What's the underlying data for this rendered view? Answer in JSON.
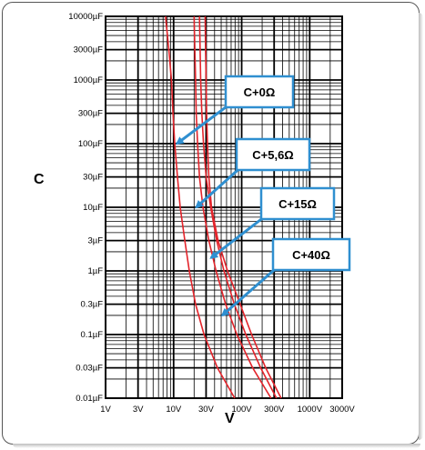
{
  "chart_data": {
    "type": "line",
    "xlabel": "V",
    "ylabel": "C",
    "x_scale": "log",
    "y_scale": "log",
    "xlim": [
      1,
      3000
    ],
    "ylim": [
      0.01,
      10000
    ],
    "grid": true,
    "x_ticks": [
      {
        "value": 1,
        "label": "1V"
      },
      {
        "value": 3,
        "label": "3V"
      },
      {
        "value": 10,
        "label": "10V"
      },
      {
        "value": 30,
        "label": "30V"
      },
      {
        "value": 100,
        "label": "100V"
      },
      {
        "value": 300,
        "label": "300V"
      },
      {
        "value": 1000,
        "label": "1000V"
      },
      {
        "value": 3000,
        "label": "3000V"
      }
    ],
    "y_ticks": [
      {
        "value": 10000,
        "label": "10000µF"
      },
      {
        "value": 3000,
        "label": "3000µF"
      },
      {
        "value": 1000,
        "label": "1000µF"
      },
      {
        "value": 300,
        "label": "300µF"
      },
      {
        "value": 100,
        "label": "100µF"
      },
      {
        "value": 30,
        "label": "30µF"
      },
      {
        "value": 10,
        "label": "10µF"
      },
      {
        "value": 3,
        "label": "3µF"
      },
      {
        "value": 1,
        "label": "1µF"
      },
      {
        "value": 0.3,
        "label": "0.3µF"
      },
      {
        "value": 0.1,
        "label": "0.1µF"
      },
      {
        "value": 0.03,
        "label": "0.03µF"
      },
      {
        "value": 0.01,
        "label": "0.01µF"
      }
    ],
    "series": [
      {
        "name": "C+0Ω",
        "points": [
          [
            7.6,
            10000
          ],
          [
            8.5,
            3000
          ],
          [
            9.3,
            1000
          ],
          [
            9.8,
            300
          ],
          [
            10.4,
            100
          ],
          [
            11.4,
            30
          ],
          [
            12.5,
            10
          ],
          [
            14.6,
            3
          ],
          [
            17,
            1
          ],
          [
            21,
            0.3
          ],
          [
            28,
            0.1
          ],
          [
            44,
            0.03
          ],
          [
            79,
            0.01
          ]
        ]
      },
      {
        "name": "C+5,6Ω",
        "points": [
          [
            20,
            10000
          ],
          [
            20.5,
            3000
          ],
          [
            21,
            1000
          ],
          [
            21.5,
            300
          ],
          [
            22.5,
            100
          ],
          [
            24,
            30
          ],
          [
            27,
            10
          ],
          [
            33,
            3
          ],
          [
            42,
            1
          ],
          [
            58,
            0.3
          ],
          [
            85,
            0.1
          ],
          [
            145,
            0.03
          ],
          [
            270,
            0.01
          ]
        ]
      },
      {
        "name": "C+15Ω",
        "points": [
          [
            24,
            10000
          ],
          [
            24.5,
            3000
          ],
          [
            25,
            1000
          ],
          [
            26,
            300
          ],
          [
            27.5,
            100
          ],
          [
            30,
            30
          ],
          [
            35,
            10
          ],
          [
            43,
            3
          ],
          [
            55,
            1
          ],
          [
            78,
            0.3
          ],
          [
            115,
            0.1
          ],
          [
            190,
            0.03
          ],
          [
            325,
            0.01
          ]
        ]
      },
      {
        "name": "C+40Ω",
        "points": [
          [
            29,
            10000
          ],
          [
            29.5,
            3000
          ],
          [
            30,
            1000
          ],
          [
            30.5,
            300
          ],
          [
            31.5,
            100
          ],
          [
            33,
            30
          ],
          [
            36,
            10
          ],
          [
            45,
            3
          ],
          [
            62,
            1
          ],
          [
            95,
            0.3
          ],
          [
            140,
            0.1
          ],
          [
            225,
            0.03
          ],
          [
            380,
            0.01
          ]
        ]
      }
    ],
    "callouts": [
      {
        "label": "C+0Ω",
        "target": [
          11.2,
          100
        ]
      },
      {
        "label": "C+5,6Ω",
        "target": [
          21.5,
          10
        ]
      },
      {
        "label": "C+15Ω",
        "target": [
          35.5,
          1.6
        ]
      },
      {
        "label": "C+40Ω",
        "target": [
          52,
          0.2
        ]
      }
    ],
    "colors": {
      "curve": "#e3242b",
      "callout_border": "#2f8fd0",
      "arrow": "#2f8fd0",
      "grid": "#000000"
    }
  }
}
